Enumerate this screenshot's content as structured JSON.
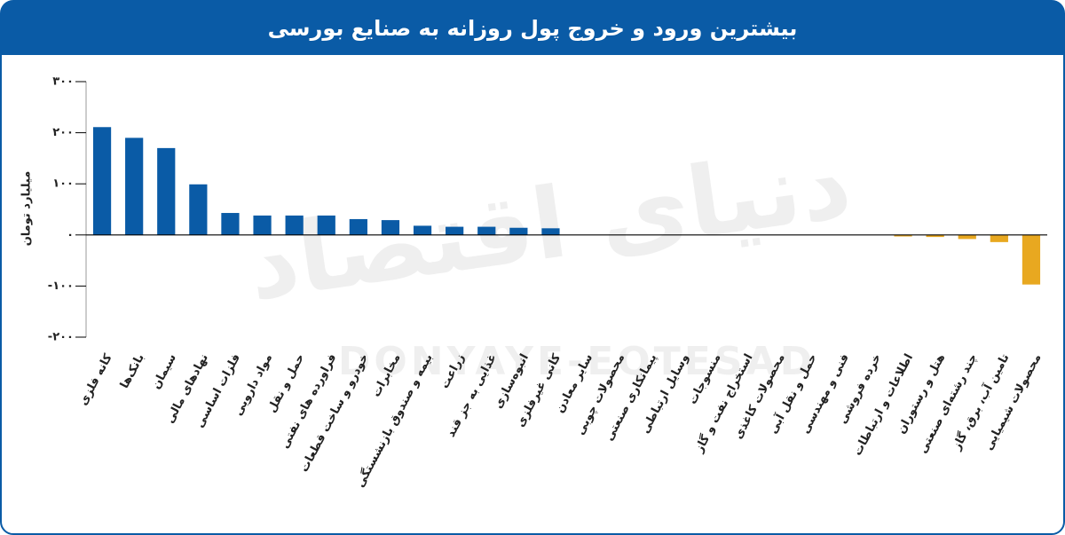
{
  "chart_data": {
    "type": "bar",
    "title": "بیشترین ورود و خروج پول روزانه به صنایع بورسی",
    "y_label": "میلیارد تومان",
    "watermark": "دنیای اقتصاد",
    "watermark_latin": "DONYAYE-EQTESAD",
    "categories": [
      "کانه فلزی",
      "بانک‌ها",
      "سیمان",
      "نهادهای مالی",
      "فلزات اساسی",
      "مواد دارویی",
      "حمل و نقل",
      "فراورده های نفتی",
      "خودرو و ساخت قطعات",
      "مخابرات",
      "بیمه و صندوق بازنشستگی",
      "زراعت",
      "غذایی به جز قند",
      "انبوه‌سازی",
      "کانی غیرفلزی",
      "سایر معادن",
      "محصولات چوبی",
      "پیمانکاری صنعتی",
      "وسایل ارتباطی",
      "منسوجات",
      "استخراج نفت و گاز",
      "محصولات کاغذی",
      "حمل و نقل آبی",
      "فنی و مهندسی",
      "خرده فروشی",
      "اطلاعات و ارتباطات",
      "هتل و رستوران",
      "چند رشته‌ای صنعتی",
      "تامین آب، برق، گاز",
      "محصولات شیمیایی"
    ],
    "values": [
      211,
      190,
      170,
      99,
      43,
      38,
      38,
      38,
      31,
      29,
      18,
      16,
      16,
      14,
      13,
      0,
      0,
      0,
      0,
      0,
      0,
      0,
      0,
      0,
      0,
      -3,
      -4,
      -8,
      -14,
      -97
    ],
    "positive_color": "#0a5ba6",
    "negative_color": "#e8a820",
    "ylim": [
      -200,
      300
    ],
    "yticks": [
      {
        "value": 300,
        "label": "۳۰۰"
      },
      {
        "value": 200,
        "label": "۲۰۰"
      },
      {
        "value": 100,
        "label": "۱۰۰"
      },
      {
        "value": 0,
        "label": "۰"
      },
      {
        "value": -100,
        "label": "-۱۰۰"
      },
      {
        "value": -200,
        "label": "-۲۰۰"
      }
    ]
  }
}
